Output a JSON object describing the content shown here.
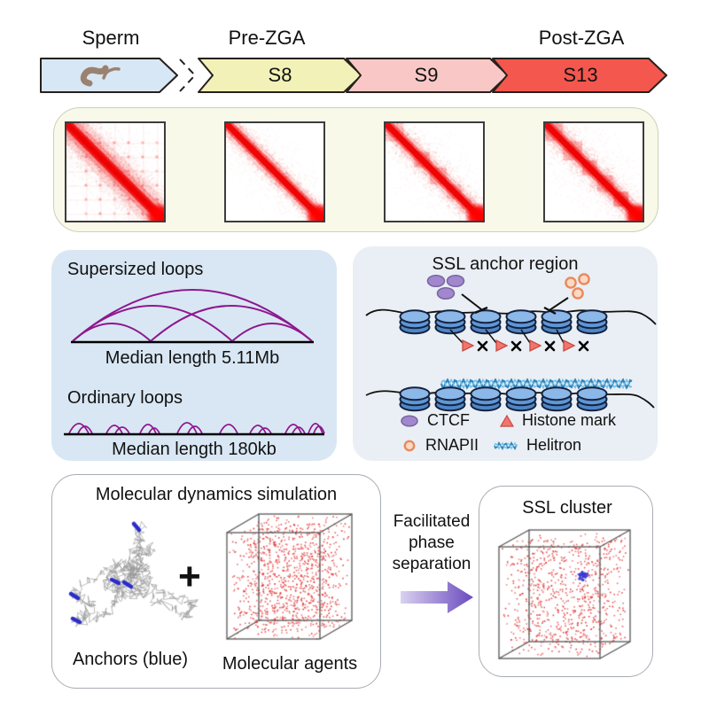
{
  "timeline": {
    "sperm_label": "Sperm",
    "pre_zga_label": "Pre-ZGA",
    "post_zga_label": "Post-ZGA",
    "stages": {
      "s8": "S8",
      "s9": "S9",
      "s13": "S13"
    }
  },
  "loops_panel": {
    "supersized_title": "Supersized loops",
    "supersized_median": "Median length 5.11Mb",
    "ordinary_title": "Ordinary loops",
    "ordinary_median": "Median length 180kb"
  },
  "ssl_panel": {
    "title": "SSL anchor region",
    "legend": {
      "ctcf": "CTCF",
      "histone": "Histone mark",
      "rnapii": "RNAPII",
      "helitron": "Helitron"
    }
  },
  "md_panel": {
    "title": "Molecular dynamics simulation",
    "anchors_label": "Anchors (blue)",
    "agents_label": "Molecular agents",
    "plus": "+"
  },
  "transition": {
    "line1": "Facilitated",
    "line2": "phase",
    "line3": "separation"
  },
  "cluster_panel": {
    "title": "SSL cluster"
  },
  "colors": {
    "sperm_fill": "#d7e7f5",
    "s8_fill": "#f2f2b8",
    "s9_fill": "#f9c8c6",
    "s13_fill": "#f4574e",
    "arrow_stroke": "#26201c",
    "worm": "#9b8270",
    "hic_bg": "#f9f9e9",
    "hic_red": "#ee0000",
    "loops_bg": "#d9e7f4",
    "loop_arc": "#8e188e",
    "ssl_bg": "#e9eff4",
    "nucleosome_top": "#8bb7e9",
    "nucleosome_mid": "#5d97d6",
    "nucleosome_dark": "#4f86c6",
    "nucleosome_stroke": "#14213d",
    "ctcf_fill": "#a187ce",
    "ctcf_stroke": "#77649f",
    "rnapii_fill": "#fbd9c2",
    "rnapii_stroke": "#e8895c",
    "histone_fill": "#f0766d",
    "histone_stroke": "#c94a42",
    "helitron_blue": "#2f86bd",
    "helitron_light": "#7cc0e8",
    "agent_dot": "#e13131",
    "anchor_blue": "#2c2cc8",
    "cluster_blue": "#3b3bd1",
    "polymer_gray": "#9c9c9c",
    "fps_grad_start": "#d9d2ef",
    "fps_grad_end": "#6a4abe"
  },
  "graphics": {
    "hic_maps": [
      "sperm",
      "s8",
      "s9",
      "s13"
    ],
    "agents_cube_dots": 1050,
    "cluster_cube_dots": 820,
    "cluster_blue_dots": 48,
    "polymer_jitter": 13,
    "seed": 42
  }
}
